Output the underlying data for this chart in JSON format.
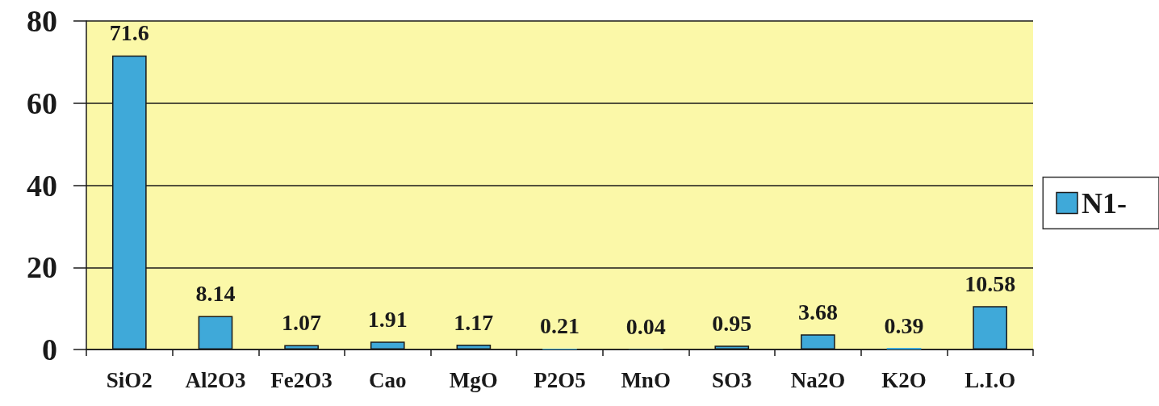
{
  "chart_data": {
    "type": "bar",
    "categories": [
      "SiO2",
      "Al2O3",
      "Fe2O3",
      "Cao",
      "MgO",
      "P2O5",
      "MnO",
      "SO3",
      "Na2O",
      "K2O",
      "L.I.O"
    ],
    "series": [
      {
        "name": "N1-",
        "color": "#3fa9d9",
        "values": [
          71.6,
          8.14,
          1.07,
          1.91,
          1.17,
          0.21,
          0.04,
          0.95,
          3.68,
          0.39,
          10.58
        ]
      }
    ],
    "ylim": [
      0,
      80
    ],
    "yticks": [
      0,
      20,
      40,
      60,
      80
    ],
    "grid": "y",
    "legend": "right",
    "data_labels": true
  }
}
